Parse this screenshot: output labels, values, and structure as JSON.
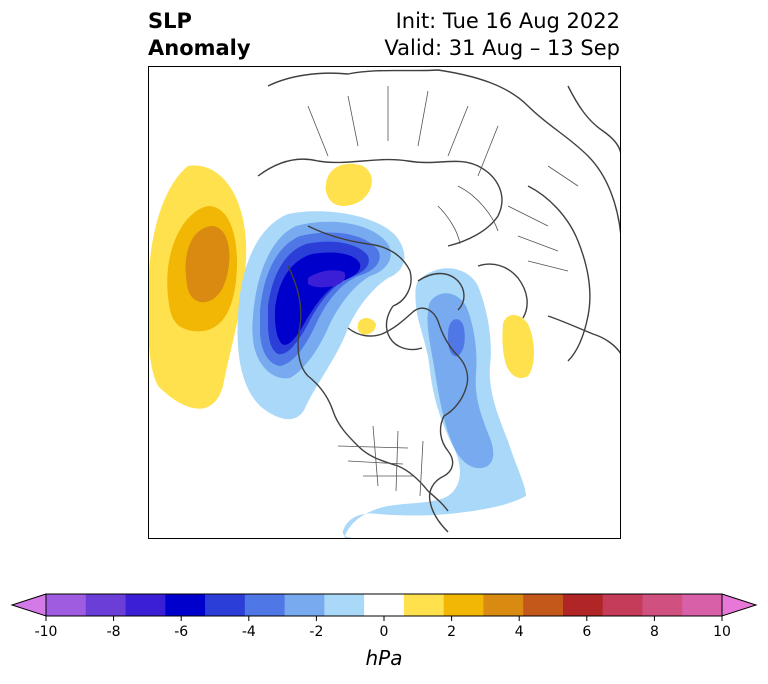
{
  "title": {
    "left_line1": "SLP",
    "left_line2": "Anomaly",
    "right_line1": "Init: Tue 16 Aug 2022",
    "right_line2": "Valid: 31 Aug – 13 Sep"
  },
  "colorbar": {
    "label": "hPa",
    "ticks": [
      "-10",
      "-8",
      "-6",
      "-4",
      "-2",
      "0",
      "2",
      "4",
      "6",
      "8",
      "10"
    ],
    "colors": [
      "#d47ae8",
      "#a05ce0",
      "#6c3ed8",
      "#3b1fd6",
      "#0000cd",
      "#2b3fd8",
      "#4f77e6",
      "#78aaf0",
      "#aad8f8",
      "#ffffff",
      "#ffe14d",
      "#f2b705",
      "#d98a10",
      "#c4571a",
      "#b02525",
      "#c43c5a",
      "#d05080",
      "#d860a8",
      "#e878d8"
    ],
    "extend": "both"
  },
  "map": {
    "projection": "north polar stereographic",
    "field": "SLP Anomaly"
  }
}
